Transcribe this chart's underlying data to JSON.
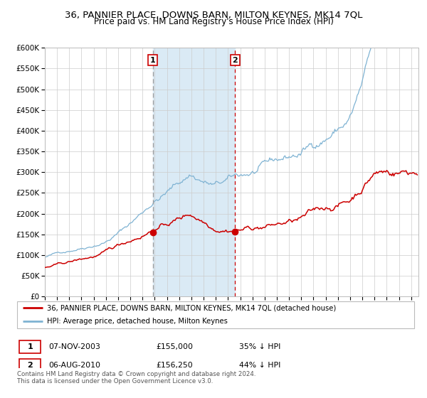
{
  "title": "36, PANNIER PLACE, DOWNS BARN, MILTON KEYNES, MK14 7QL",
  "subtitle": "Price paid vs. HM Land Registry's House Price Index (HPI)",
  "legend_line1": "36, PANNIER PLACE, DOWNS BARN, MILTON KEYNES, MK14 7QL (detached house)",
  "legend_line2": "HPI: Average price, detached house, Milton Keynes",
  "transaction1_date": "07-NOV-2003",
  "transaction1_price": 155000,
  "transaction1_label": "35% ↓ HPI",
  "transaction2_date": "06-AUG-2010",
  "transaction2_price": 156250,
  "transaction2_label": "44% ↓ HPI",
  "footer": "Contains HM Land Registry data © Crown copyright and database right 2024.\nThis data is licensed under the Open Government Licence v3.0.",
  "hpi_color": "#7fb3d3",
  "price_color": "#cc0000",
  "highlight_color": "#daeaf5",
  "vline1_color": "#aaaaaa",
  "vline2_color": "#cc0000",
  "ylim": [
    0,
    600000
  ],
  "yticks": [
    0,
    50000,
    100000,
    150000,
    200000,
    250000,
    300000,
    350000,
    400000,
    450000,
    500000,
    550000,
    600000
  ],
  "xmin": 1995,
  "xmax": 2025.6
}
